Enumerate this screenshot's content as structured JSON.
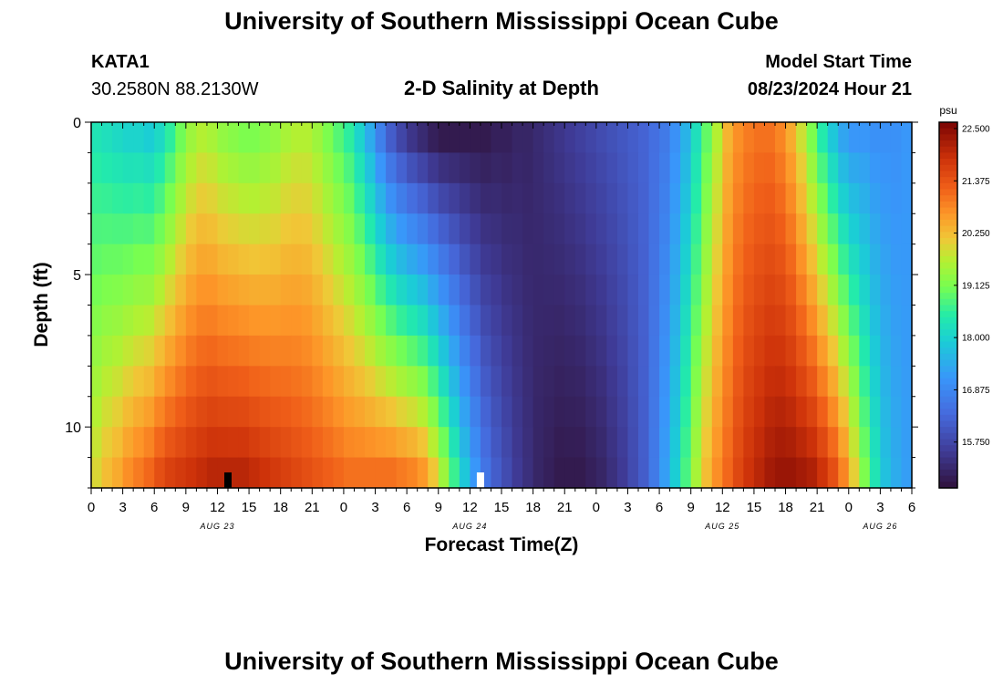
{
  "page": {
    "title": "University of Southern Mississippi Ocean Cube",
    "footer_title": "University of Southern Mississippi Ocean Cube",
    "station_id": "KATA1",
    "coordinates": "30.2580N  88.2130W",
    "subtitle": "2-D Salinity at Depth",
    "model_start_label": "Model Start Time",
    "model_start_value": "08/23/2024 Hour 21"
  },
  "chart_data": {
    "type": "heatmap",
    "title": "2-D Salinity at Depth",
    "xlabel": "Forecast Time(Z)",
    "ylabel": "Depth (ft)",
    "x_hours_range": [
      0,
      78
    ],
    "y_range_ft": [
      0,
      12
    ],
    "x_tick_labels": [
      "0",
      "3",
      "6",
      "9",
      "12",
      "15",
      "18",
      "21",
      "0",
      "3",
      "6",
      "9",
      "12",
      "15",
      "18",
      "21",
      "0",
      "3",
      "6",
      "9",
      "12",
      "15",
      "18",
      "21",
      "0",
      "3",
      "6"
    ],
    "y_ticks": [
      0,
      5,
      10
    ],
    "date_labels": [
      {
        "label": "AUG 23",
        "hour": 12
      },
      {
        "label": "AUG 24",
        "hour": 36
      },
      {
        "label": "AUG 25",
        "hour": 60
      },
      {
        "label": "AUG 26",
        "hour": 75
      }
    ],
    "colorbar": {
      "unit": "psu",
      "min": 14.625,
      "max": 22.5,
      "tick_labels": [
        "22.500",
        "21.375",
        "20.250",
        "19.125",
        "18.000",
        "16.875",
        "15.750"
      ]
    },
    "time_markers": [
      {
        "hour": 13,
        "color": "#000000"
      },
      {
        "hour": 37,
        "color": "#ffffff"
      }
    ],
    "time_columns": 78,
    "depth_layers": 12,
    "surface_salinity": [
      18.2,
      18.1,
      18.0,
      17.9,
      17.9,
      17.8,
      18.0,
      18.4,
      18.9,
      19.3,
      19.5,
      19.4,
      19.2,
      19.1,
      19.0,
      19.0,
      19.1,
      19.2,
      19.4,
      19.5,
      19.5,
      19.3,
      19.0,
      18.7,
      18.4,
      17.9,
      17.3,
      16.6,
      16.0,
      15.6,
      15.3,
      15.1,
      14.9,
      14.8,
      14.8,
      14.8,
      14.8,
      14.8,
      14.9,
      14.9,
      15.0,
      15.0,
      15.1,
      15.2,
      15.3,
      15.4,
      15.5,
      15.6,
      15.7,
      15.8,
      15.9,
      16.0,
      16.1,
      16.3,
      16.5,
      16.9,
      17.4,
      18.1,
      18.8,
      19.5,
      20.2,
      20.6,
      20.8,
      20.9,
      20.9,
      20.7,
      20.3,
      19.7,
      19.0,
      18.3,
      17.7,
      17.2,
      17.0,
      17.0,
      16.9,
      16.9,
      16.9,
      17.0
    ],
    "bottom_salinity": [
      19.8,
      20.1,
      20.3,
      20.6,
      20.8,
      21.0,
      21.3,
      21.5,
      21.6,
      21.7,
      21.8,
      21.9,
      21.9,
      21.9,
      21.9,
      21.8,
      21.7,
      21.6,
      21.5,
      21.4,
      21.3,
      21.2,
      21.1,
      21.0,
      20.9,
      20.9,
      20.9,
      20.9,
      20.9,
      20.8,
      20.7,
      20.5,
      20.0,
      19.3,
      18.5,
      17.7,
      17.0,
      16.4,
      16.0,
      15.7,
      15.4,
      15.2,
      15.0,
      14.9,
      14.8,
      14.8,
      14.8,
      14.9,
      15.0,
      15.2,
      15.4,
      15.7,
      16.0,
      16.5,
      17.1,
      17.8,
      18.6,
      19.4,
      20.1,
      20.6,
      21.0,
      21.4,
      21.7,
      21.9,
      22.1,
      22.2,
      22.2,
      22.1,
      22.0,
      21.7,
      21.3,
      20.7,
      19.9,
      19.0,
      18.2,
      17.6,
      17.3,
      17.1
    ]
  }
}
